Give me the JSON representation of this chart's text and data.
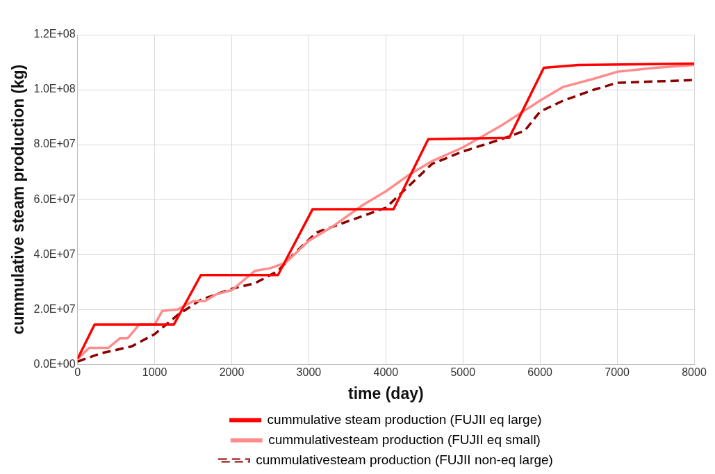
{
  "chart_data": {
    "type": "line",
    "xlabel": "time (day)",
    "ylabel": "cummulative steam production (kg)",
    "xlim": [
      0,
      8000
    ],
    "xticks": [
      0,
      1000,
      2000,
      3000,
      4000,
      5000,
      6000,
      7000,
      8000
    ],
    "ylim": [
      0,
      120000000
    ],
    "yticks": [
      {
        "value": 0,
        "label": "0.0E+00"
      },
      {
        "value": 20000000,
        "label": "2.0E+07"
      },
      {
        "value": 40000000,
        "label": "4.0E+07"
      },
      {
        "value": 60000000,
        "label": "6.0E+07"
      },
      {
        "value": 80000000,
        "label": "8.0E+07"
      },
      {
        "value": 100000000,
        "label": "1.0E+08"
      },
      {
        "value": 120000000,
        "label": "1.2E+08"
      }
    ],
    "grid": true,
    "legend": "bottom",
    "marker": "none",
    "series": [
      {
        "name": "cummulative steam production (FUJII eq large)",
        "color": "#ff0000",
        "line_style": "solid",
        "x": [
          0,
          220,
          1250,
          1600,
          2600,
          3050,
          4100,
          4550,
          5600,
          6050,
          6500,
          8000
        ],
        "values": [
          2000000,
          14500000,
          14500000,
          32500000,
          32500000,
          56500000,
          56500000,
          82000000,
          82500000,
          108000000,
          109000000,
          109500000
        ]
      },
      {
        "name": "cummulativesteam production (FUJII eq small)",
        "color": "#ff8c8c",
        "line_style": "solid",
        "x": [
          0,
          150,
          400,
          550,
          650,
          800,
          1000,
          1100,
          1300,
          1500,
          1650,
          1800,
          2000,
          2300,
          2500,
          2700,
          3000,
          3300,
          3700,
          4000,
          4300,
          4600,
          5000,
          5500,
          6000,
          6300,
          6700,
          7000,
          7500,
          8000
        ],
        "values": [
          2000000,
          6000000,
          6000000,
          9500000,
          9500000,
          14500000,
          14500000,
          19500000,
          20000000,
          23000000,
          23000000,
          25500000,
          27000000,
          34000000,
          35000000,
          37000000,
          45000000,
          50000000,
          58000000,
          63000000,
          69000000,
          74000000,
          79000000,
          87000000,
          96000000,
          101000000,
          104000000,
          106500000,
          108000000,
          109000000
        ]
      },
      {
        "name": "cummulativesteam production (FUJII non-eq large)",
        "color": "#8b0000",
        "line_style": "dashed",
        "x": [
          0,
          300,
          700,
          1000,
          1300,
          1600,
          2000,
          2300,
          2600,
          2800,
          3100,
          3500,
          4000,
          4300,
          4600,
          5000,
          5500,
          5800,
          6000,
          6300,
          6700,
          7000,
          8000
        ],
        "values": [
          1000000,
          4000000,
          6500000,
          11000000,
          18000000,
          23500000,
          27500000,
          29500000,
          34000000,
          40000000,
          48000000,
          52000000,
          57000000,
          65000000,
          73000000,
          77500000,
          82000000,
          85000000,
          92000000,
          96000000,
          100000000,
          102500000,
          103500000
        ]
      }
    ]
  }
}
